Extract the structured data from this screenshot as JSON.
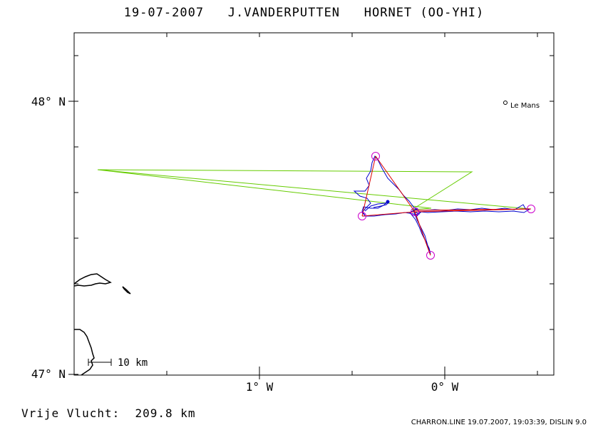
{
  "header": {
    "title": "19-07-2007   J.VANDERPUTTEN   HORNET (OO-YHI)"
  },
  "map": {
    "lat_labels": [
      "48° N",
      "47° N"
    ],
    "lon_labels": [
      "1° W",
      "0° W"
    ],
    "city": {
      "name": "Le Mans"
    },
    "scale_label": "10 km",
    "colors": {
      "frame": "#000000",
      "track": "#0000cc",
      "task": "#dd0000",
      "turnpoint": "#cc00cc",
      "green_line": "#66cc00",
      "coast": "#000000"
    }
  },
  "footer": {
    "distance_label": "Vrije Vlucht:  209.8 km",
    "credit": "CHARRON.LINE 19.07.2007, 19:03:39, DISLIN 9.0"
  }
}
